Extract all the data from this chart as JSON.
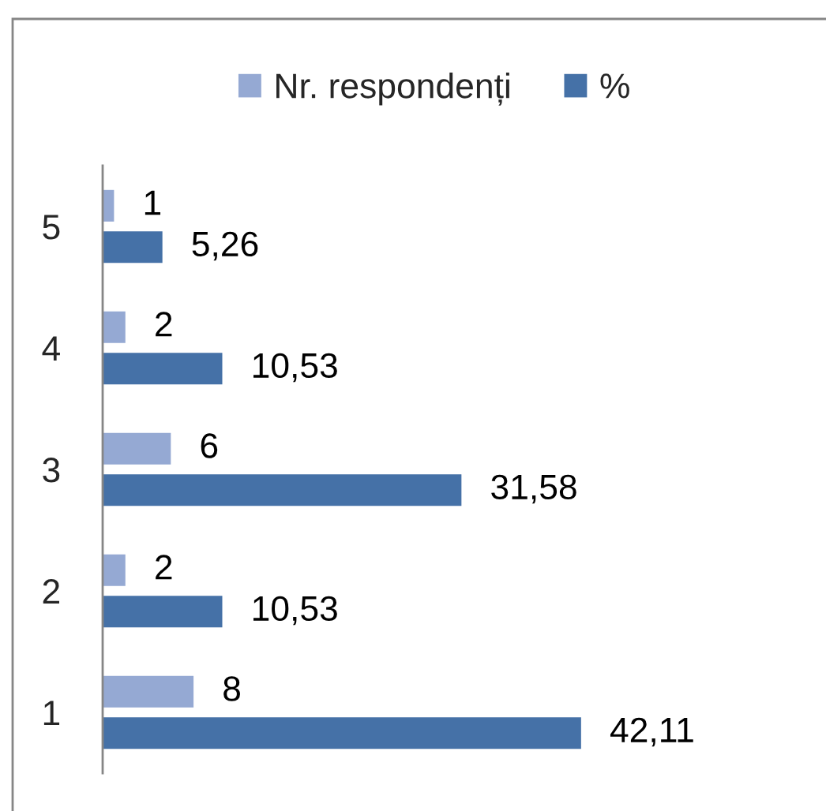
{
  "chart_data": {
    "type": "bar",
    "orientation": "horizontal",
    "categories": [
      "5",
      "4",
      "3",
      "2",
      "1"
    ],
    "series": [
      {
        "name": "Nr. respondenți",
        "color": "#95a9d3",
        "values": [
          1,
          2,
          6,
          2,
          8
        ],
        "value_labels": [
          "1",
          "2",
          "6",
          "2",
          "8"
        ]
      },
      {
        "name": "%",
        "color": "#4571a7",
        "values": [
          5.26,
          10.53,
          31.58,
          10.53,
          42.11
        ],
        "value_labels": [
          "5,26",
          "10,53",
          "31,58",
          "10,53",
          "42,11"
        ]
      }
    ],
    "legend": "top",
    "grid": false
  }
}
